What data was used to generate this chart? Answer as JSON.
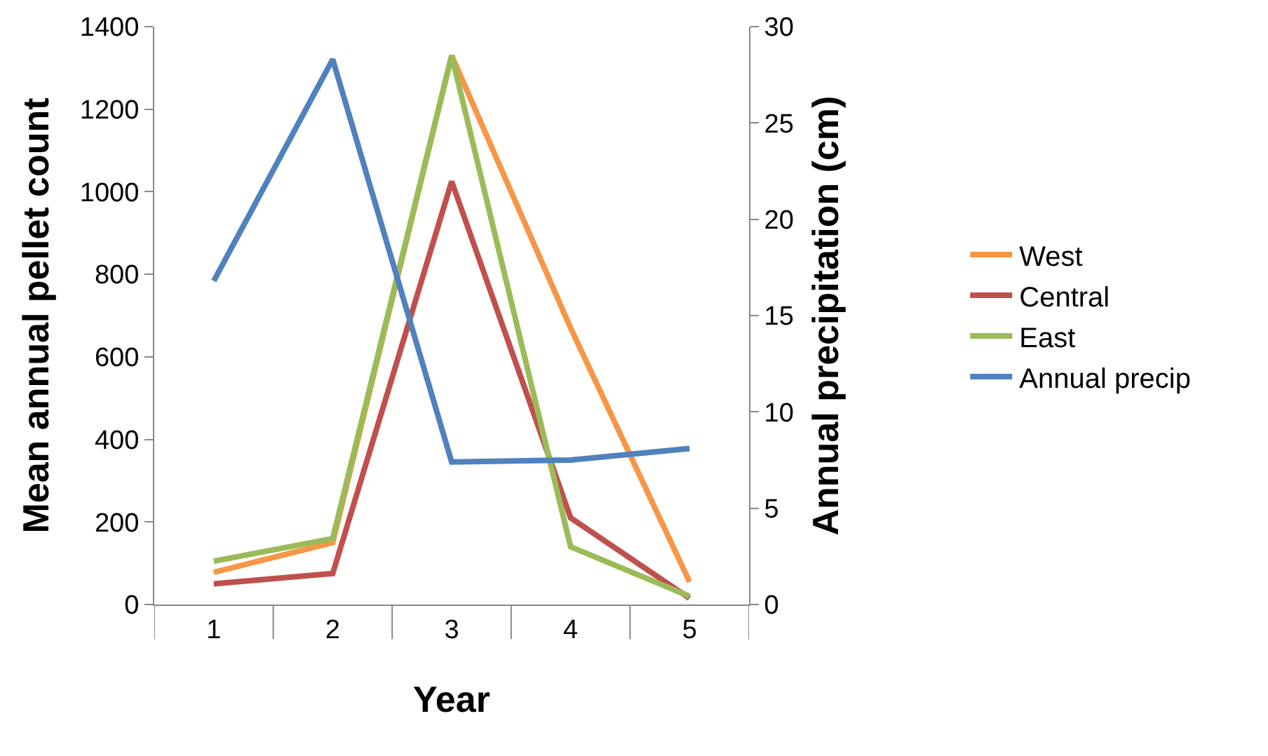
{
  "chart_data": {
    "type": "line",
    "xlabel": "Year",
    "ylabel": "Mean annual pellet count",
    "y2label": "Annual precipitation (cm)",
    "categories": [
      "1",
      "2",
      "3",
      "4",
      "5"
    ],
    "series": [
      {
        "name": "West",
        "color": "#f79646",
        "values": [
          78,
          150,
          1330,
          670,
          55
        ]
      },
      {
        "name": "Central",
        "color": "#c0504d",
        "values": [
          50,
          75,
          1025,
          210,
          15
        ]
      },
      {
        "name": "East",
        "color": "#9bbb59",
        "values": [
          105,
          160,
          1330,
          140,
          20
        ]
      },
      {
        "name": "Annual precip",
        "color": "#4f81bd",
        "axis": "y2",
        "values": [
          16.8,
          28.3,
          7.4,
          7.5,
          8.1
        ]
      }
    ],
    "ylim": [
      0,
      1400
    ],
    "yticks": [
      0,
      200,
      400,
      600,
      800,
      1000,
      1200,
      1400
    ],
    "y2lim": [
      0,
      30
    ],
    "y2ticks": [
      0,
      5,
      10,
      15,
      20,
      25,
      30
    ],
    "grid": false,
    "legend": "right",
    "marker": "none",
    "line_style": "solid"
  }
}
